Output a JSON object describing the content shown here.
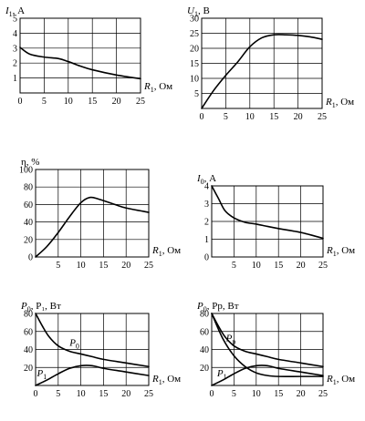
{
  "chart_data": [
    {
      "id": "i1",
      "type": "line",
      "ylabel_sym": "I",
      "ylabel_sub": "1",
      "ylabel_unit": ", А",
      "xlabel_sym": "R",
      "xlabel_sub": "1",
      "xlabel_unit": ", Ом",
      "xlim": [
        0,
        25
      ],
      "ylim": [
        0,
        5
      ],
      "xticks": [
        0,
        5,
        10,
        15,
        20,
        25
      ],
      "yticks": [
        1,
        2,
        3,
        4,
        5
      ],
      "grid": true,
      "series": [
        {
          "x": [
            0,
            2,
            5,
            8,
            10,
            12.5,
            15,
            20,
            25
          ],
          "y": [
            3.05,
            2.6,
            2.4,
            2.3,
            2.1,
            1.8,
            1.55,
            1.2,
            0.95
          ]
        }
      ],
      "annotations": []
    },
    {
      "id": "u1",
      "type": "line",
      "ylabel_sym": "U",
      "ylabel_sub": "1",
      "ylabel_unit": ", В",
      "xlabel_sym": "R",
      "xlabel_sub": "1",
      "xlabel_unit": ", Ом",
      "xlim": [
        0,
        25
      ],
      "ylim": [
        0,
        30
      ],
      "xticks": [
        0,
        5,
        10,
        15,
        20,
        25
      ],
      "yticks": [
        5,
        10,
        15,
        20,
        25,
        30
      ],
      "grid": true,
      "series": [
        {
          "x": [
            0,
            2.5,
            5,
            7.5,
            10,
            12.5,
            15,
            17.5,
            20,
            22.5,
            25
          ],
          "y": [
            0,
            6,
            11,
            15.5,
            20.5,
            23.5,
            24.5,
            24.5,
            24.3,
            23.8,
            23
          ]
        }
      ],
      "annotations": []
    },
    {
      "id": "eta",
      "type": "line",
      "ylabel_sym": "η",
      "ylabel_sub": "",
      "ylabel_unit": ", %",
      "xlabel_sym": "R",
      "xlabel_sub": "1",
      "xlabel_unit": ", Ом",
      "xlim": [
        0,
        25
      ],
      "ylim": [
        0,
        100
      ],
      "xticks": [
        5,
        10,
        15,
        20,
        25
      ],
      "yticks": [
        0,
        20,
        40,
        60,
        80,
        100
      ],
      "grid": true,
      "series": [
        {
          "x": [
            0,
            2.5,
            5,
            7.5,
            10,
            12,
            14,
            17.5,
            20,
            25
          ],
          "y": [
            0,
            12,
            28,
            46,
            62,
            68,
            66,
            60,
            56,
            51
          ]
        }
      ],
      "annotations": []
    },
    {
      "id": "i0",
      "type": "line",
      "ylabel_sym": "I",
      "ylabel_sub": "0",
      "ylabel_unit": ", А",
      "xlabel_sym": "R",
      "xlabel_sub": "1",
      "xlabel_unit": ", Ом",
      "xlim": [
        0,
        25
      ],
      "ylim": [
        0,
        4
      ],
      "xticks": [
        5,
        10,
        15,
        20,
        25
      ],
      "yticks": [
        0,
        1,
        2,
        3,
        4
      ],
      "grid": true,
      "series": [
        {
          "x": [
            0,
            1.5,
            3,
            5,
            7.5,
            10,
            12.5,
            15,
            20,
            25
          ],
          "y": [
            4.0,
            3.3,
            2.6,
            2.2,
            1.95,
            1.85,
            1.72,
            1.6,
            1.38,
            1.05
          ]
        }
      ],
      "annotations": []
    },
    {
      "id": "p01",
      "type": "line",
      "ylabel_sym": "P",
      "ylabel_sub": "0",
      "ylabel_unit": ", P₁, Вт",
      "xlabel_sym": "R",
      "xlabel_sub": "1",
      "xlabel_unit": ", Ом",
      "xlim": [
        0,
        25
      ],
      "ylim": [
        0,
        80
      ],
      "xticks": [
        0,
        5,
        10,
        15,
        20,
        25
      ],
      "yticks": [
        20,
        40,
        60,
        80
      ],
      "grid": true,
      "series": [
        {
          "name": "P0",
          "x": [
            0,
            1.5,
            3,
            5,
            7.5,
            10,
            12.5,
            15,
            20,
            25
          ],
          "y": [
            80,
            66,
            54,
            44,
            38,
            35,
            32,
            29,
            25,
            21
          ]
        },
        {
          "name": "P1",
          "x": [
            0,
            2.5,
            5,
            7.5,
            10,
            12.5,
            15,
            20,
            25
          ],
          "y": [
            0,
            6,
            13,
            19,
            22,
            22,
            19,
            15,
            11
          ]
        }
      ],
      "annotations": [
        {
          "sym": "P",
          "sub": "0",
          "x": 7.5,
          "y": 44
        },
        {
          "sym": "P",
          "sub": "1",
          "x": 0.3,
          "y": 10
        }
      ]
    },
    {
      "id": "p0p",
      "type": "line",
      "ylabel_sym": "P",
      "ylabel_sub": "0",
      "ylabel_unit": ", Pp, Вт",
      "xlabel_sym": "R",
      "xlabel_sub": "1",
      "xlabel_unit": ", Ом",
      "xlim": [
        0,
        25
      ],
      "ylim": [
        0,
        80
      ],
      "xticks": [
        0,
        5,
        10,
        15,
        20,
        25
      ],
      "yticks": [
        20,
        40,
        60,
        80
      ],
      "grid": true,
      "series": [
        {
          "name": "P0",
          "x": [
            0,
            1.5,
            3,
            5,
            7.5,
            10,
            12.5,
            15,
            20,
            25
          ],
          "y": [
            80,
            66,
            54,
            44,
            38,
            35,
            32,
            29,
            25,
            21
          ]
        },
        {
          "name": "Pp",
          "x": [
            0,
            2.5,
            5,
            7.5,
            10,
            12.5,
            15,
            20,
            25
          ],
          "y": [
            80,
            52,
            33,
            21,
            14,
            11,
            10,
            10,
            10
          ]
        },
        {
          "name": "P1",
          "x": [
            0,
            2.5,
            5,
            7.5,
            10,
            12.5,
            15,
            20,
            25
          ],
          "y": [
            0,
            6,
            13,
            19,
            22,
            22,
            19,
            15,
            11
          ]
        }
      ],
      "annotations": [
        {
          "sym": "P",
          "sub": "p",
          "x": 3.2,
          "y": 49
        },
        {
          "sym": "P",
          "sub": "1",
          "x": 1.2,
          "y": 10
        }
      ]
    }
  ]
}
